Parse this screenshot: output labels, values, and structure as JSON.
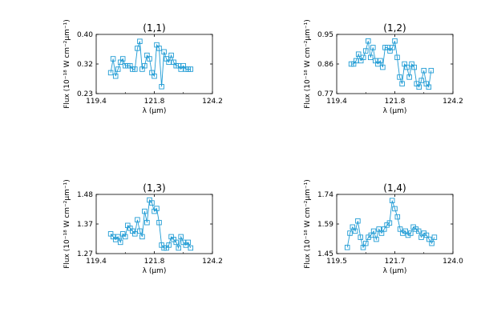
{
  "chart_data": [
    {
      "type": "line",
      "title": "(1,1)",
      "xlabel": "λ (μm)",
      "ylabel": "Flux (10⁻¹⁸ W cm⁻²μm⁻¹)",
      "xlim": [
        119.4,
        124.2
      ],
      "ylim": [
        0.23,
        0.4
      ],
      "xticks": [
        "119.4",
        "121.8",
        "124.2"
      ],
      "yticks": [
        "0.23",
        "0.32",
        "0.40"
      ],
      "series": [
        {
          "x": [
            120.0,
            120.1,
            120.2,
            120.3,
            120.4,
            120.5,
            120.6,
            120.7,
            120.8,
            120.9,
            121.0,
            121.1,
            121.2,
            121.3,
            121.4,
            121.5,
            121.6,
            121.7,
            121.8,
            121.9,
            122.0,
            122.1,
            122.2,
            122.3,
            122.4,
            122.5,
            122.6,
            122.7,
            122.8,
            122.9,
            123.0,
            123.1,
            123.2,
            123.3
          ],
          "y": [
            0.29,
            0.33,
            0.28,
            0.3,
            0.32,
            0.33,
            0.31,
            0.31,
            0.31,
            0.3,
            0.3,
            0.36,
            0.38,
            0.3,
            0.31,
            0.34,
            0.33,
            0.29,
            0.28,
            0.37,
            0.36,
            0.25,
            0.35,
            0.33,
            0.32,
            0.34,
            0.32,
            0.31,
            0.31,
            0.3,
            0.31,
            0.3,
            0.3,
            0.3
          ],
          "color": "#1f9bd4"
        }
      ]
    },
    {
      "type": "line",
      "title": "(1,2)",
      "xlabel": "λ (μm)",
      "ylabel": "Flux (10⁻¹⁸ W cm⁻²μm⁻¹)",
      "xlim": [
        119.4,
        124.2
      ],
      "ylim": [
        0.77,
        0.95
      ],
      "xticks": [
        "119.4",
        "121.8",
        "124.2"
      ],
      "yticks": [
        "0.77",
        "0.86",
        "0.95"
      ],
      "series": [
        {
          "x": [
            120.0,
            120.1,
            120.2,
            120.3,
            120.4,
            120.5,
            120.6,
            120.7,
            120.8,
            120.9,
            121.0,
            121.1,
            121.2,
            121.3,
            121.4,
            121.5,
            121.6,
            121.7,
            121.8,
            121.9,
            122.0,
            122.1,
            122.2,
            122.3,
            122.4,
            122.5,
            122.6,
            122.7,
            122.8,
            122.9,
            123.0,
            123.1,
            123.2,
            123.3
          ],
          "y": [
            0.86,
            0.86,
            0.87,
            0.89,
            0.87,
            0.88,
            0.9,
            0.93,
            0.88,
            0.91,
            0.87,
            0.86,
            0.87,
            0.85,
            0.91,
            0.91,
            0.9,
            0.91,
            0.93,
            0.88,
            0.82,
            0.8,
            0.86,
            0.85,
            0.82,
            0.86,
            0.85,
            0.8,
            0.79,
            0.81,
            0.84,
            0.8,
            0.79,
            0.84
          ],
          "color": "#1f9bd4"
        }
      ]
    },
    {
      "type": "line",
      "title": "(1,3)",
      "xlabel": "λ (μm)",
      "ylabel": "Flux (10⁻¹⁸ W cm⁻²μm⁻¹)",
      "xlim": [
        119.4,
        124.2
      ],
      "ylim": [
        1.27,
        1.48
      ],
      "xticks": [
        "119.4",
        "121.8",
        "124.2"
      ],
      "yticks": [
        "1.27",
        "1.37",
        "1.48"
      ],
      "series": [
        {
          "x": [
            120.0,
            120.1,
            120.2,
            120.3,
            120.4,
            120.5,
            120.6,
            120.7,
            120.8,
            120.9,
            121.0,
            121.1,
            121.2,
            121.3,
            121.4,
            121.5,
            121.6,
            121.7,
            121.8,
            121.9,
            122.0,
            122.1,
            122.2,
            122.3,
            122.4,
            122.5,
            122.6,
            122.7,
            122.8,
            122.9,
            123.0,
            123.1,
            123.2,
            123.3
          ],
          "y": [
            1.34,
            1.33,
            1.32,
            1.33,
            1.31,
            1.34,
            1.33,
            1.37,
            1.36,
            1.35,
            1.34,
            1.39,
            1.35,
            1.33,
            1.42,
            1.38,
            1.46,
            1.45,
            1.42,
            1.43,
            1.38,
            1.3,
            1.29,
            1.29,
            1.3,
            1.33,
            1.32,
            1.31,
            1.29,
            1.33,
            1.31,
            1.3,
            1.31,
            1.29
          ],
          "color": "#1f9bd4"
        }
      ]
    },
    {
      "type": "line",
      "title": "(1,4)",
      "xlabel": "λ (μm)",
      "ylabel": "Flux (10⁻¹⁸ W cm⁻²μm⁻¹)",
      "xlim": [
        119.6,
        124.0
      ],
      "ylim": [
        1.45,
        1.74
      ],
      "xticks": [
        "119.5",
        "121.7",
        "124.0"
      ],
      "yticks": [
        "1.45",
        "1.59",
        "1.74"
      ],
      "series": [
        {
          "x": [
            120.0,
            120.1,
            120.2,
            120.3,
            120.4,
            120.5,
            120.6,
            120.7,
            120.8,
            120.9,
            121.0,
            121.1,
            121.2,
            121.3,
            121.4,
            121.5,
            121.6,
            121.7,
            121.8,
            121.9,
            122.0,
            122.1,
            122.2,
            122.3,
            122.4,
            122.5,
            122.6,
            122.7,
            122.8,
            122.9,
            123.0,
            123.1,
            123.2,
            123.3
          ],
          "y": [
            1.48,
            1.55,
            1.58,
            1.56,
            1.61,
            1.53,
            1.48,
            1.5,
            1.53,
            1.54,
            1.56,
            1.52,
            1.57,
            1.55,
            1.57,
            1.59,
            1.6,
            1.71,
            1.67,
            1.63,
            1.57,
            1.55,
            1.56,
            1.54,
            1.55,
            1.58,
            1.57,
            1.56,
            1.53,
            1.55,
            1.54,
            1.52,
            1.5,
            1.53
          ],
          "color": "#1f9bd4"
        }
      ]
    }
  ]
}
